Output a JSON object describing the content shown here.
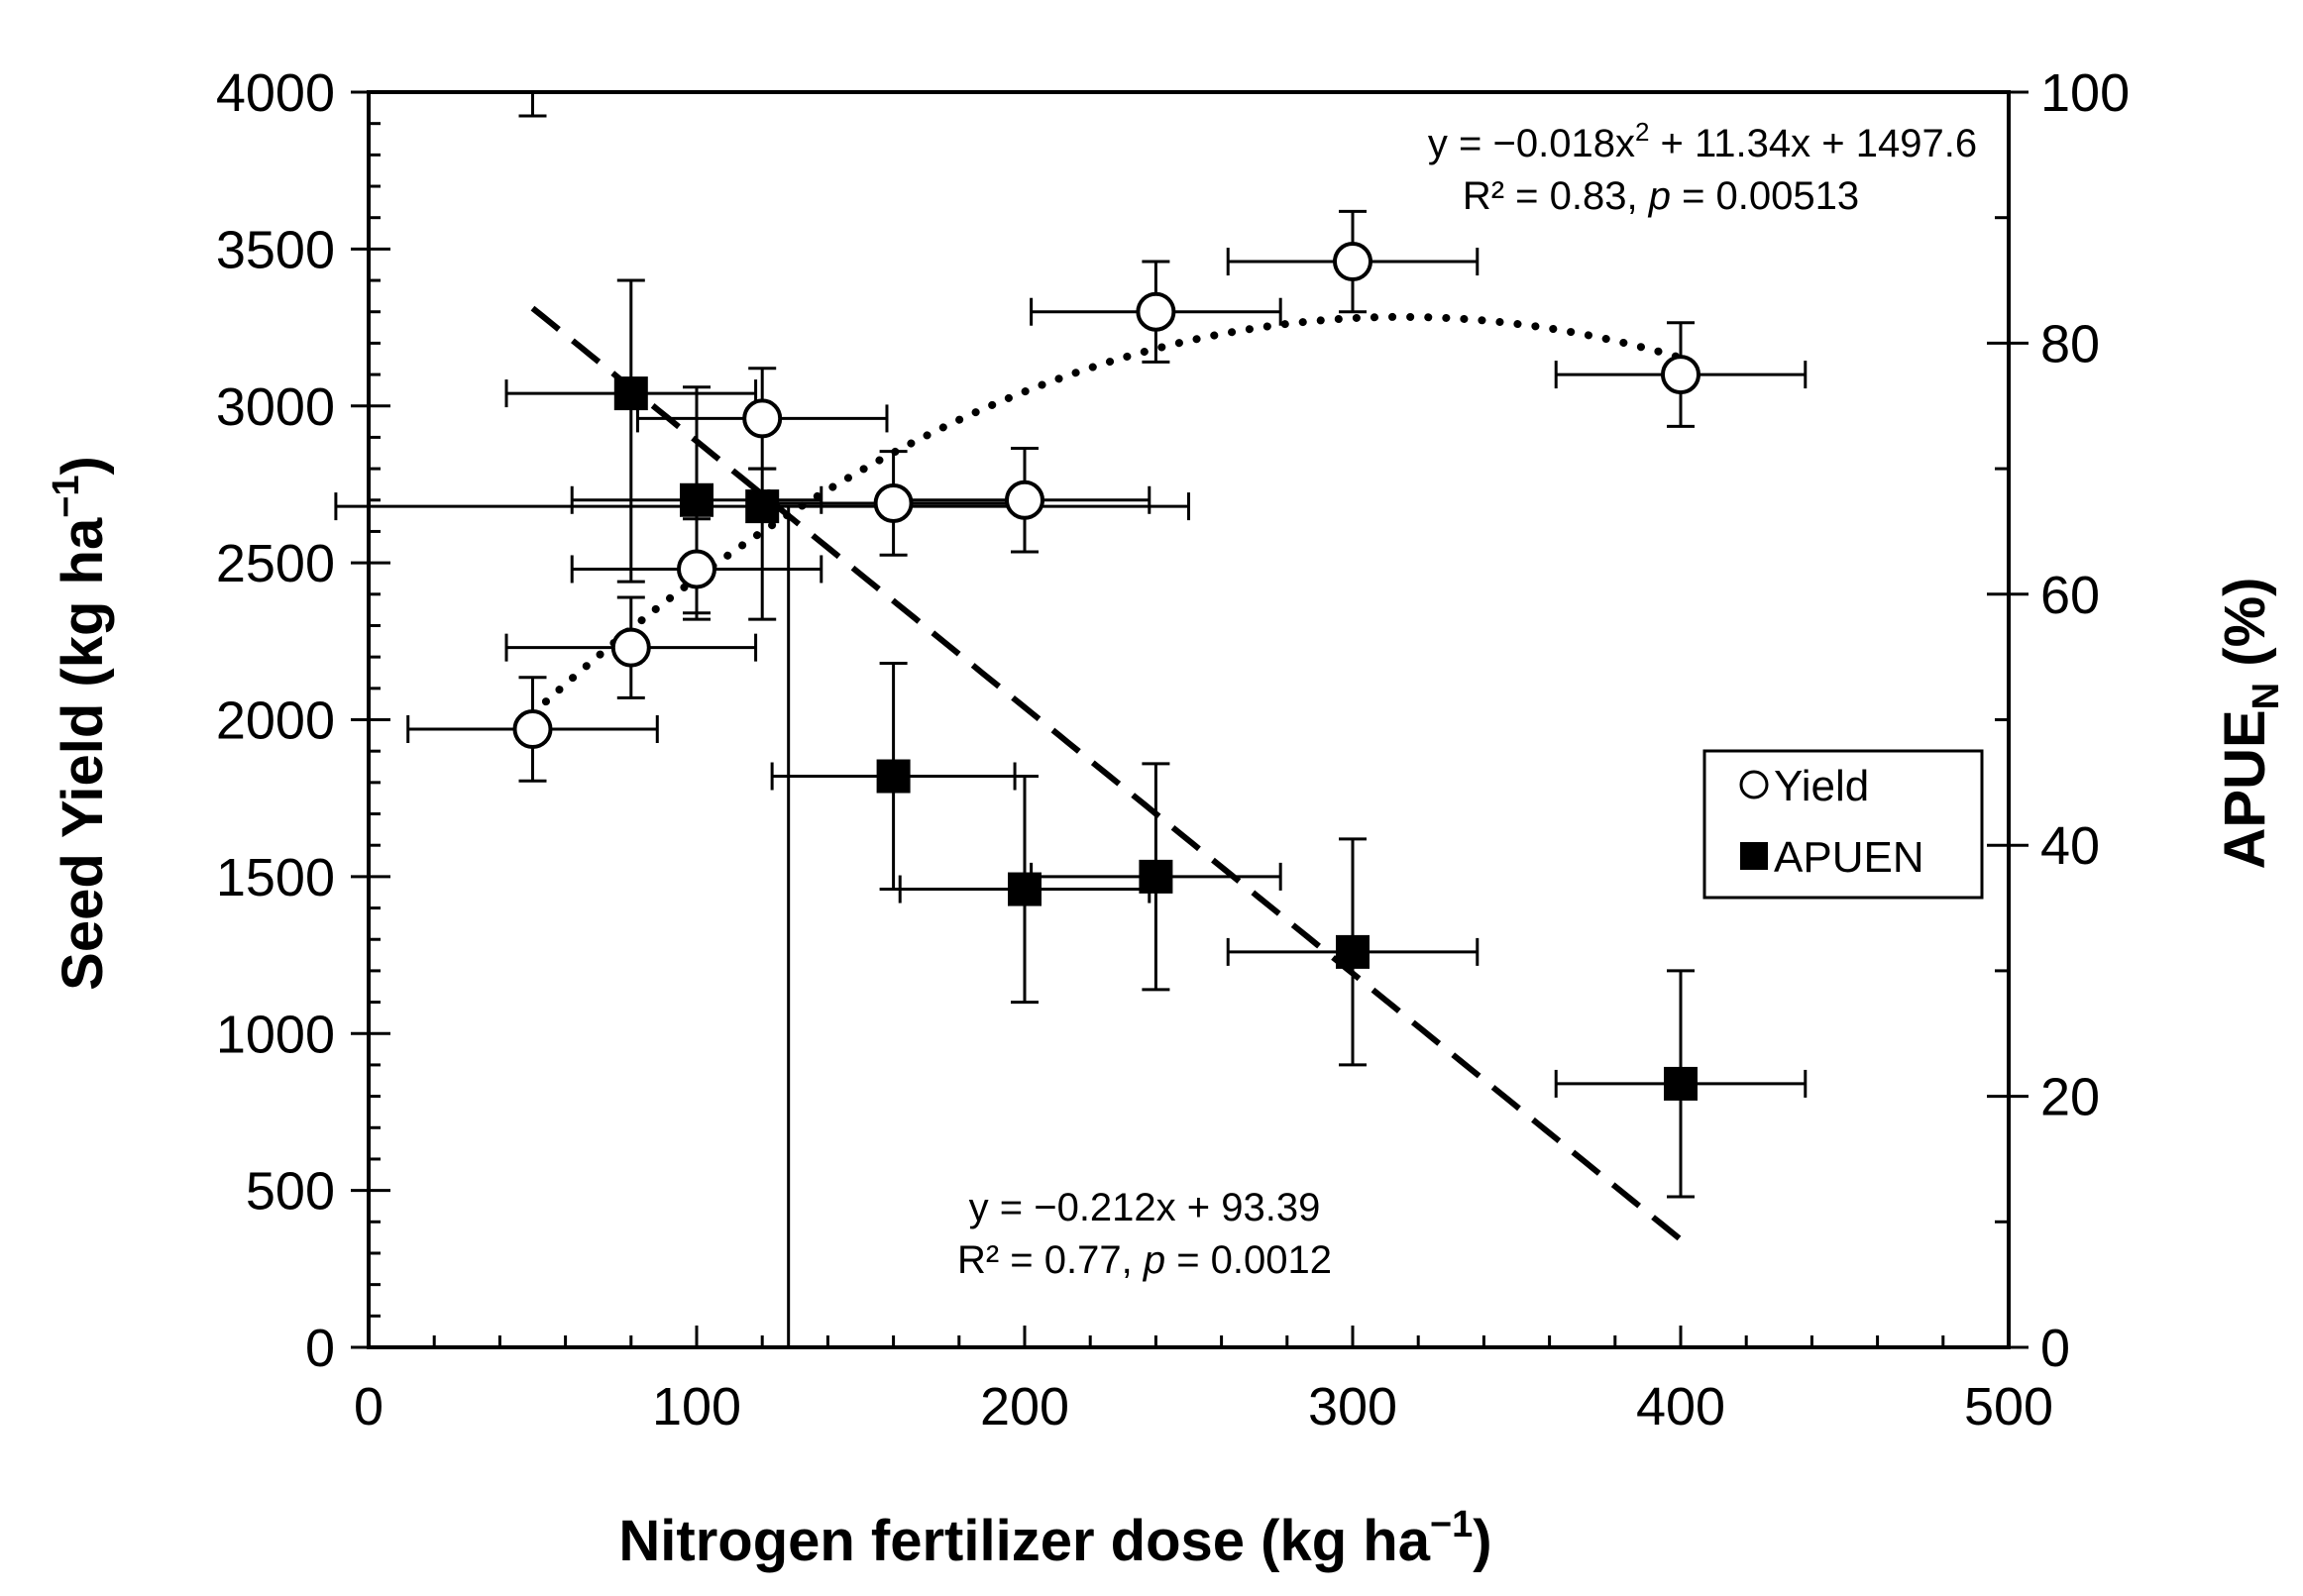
{
  "chart_data": {
    "type": "scatter",
    "x_axis": {
      "label_main": "Nitrogen fertilizer dose (kg ha",
      "label_sup": "−1",
      "label_end": ")",
      "range": [
        0,
        500
      ],
      "ticks": [
        0,
        100,
        200,
        300,
        400,
        500
      ],
      "minor_step": 20
    },
    "y_axis_left": {
      "label_main": "Seed Yield (kg ha",
      "label_sup": "−1",
      "label_end": ")",
      "range": [
        0,
        4000
      ],
      "ticks": [
        0,
        500,
        1000,
        1500,
        2000,
        2500,
        3000,
        3500,
        4000
      ],
      "minor_step": 100
    },
    "y_axis_right": {
      "label_main": "APUE",
      "label_sub": "N",
      "label_end": " (%)",
      "range": [
        0,
        100
      ],
      "ticks": [
        0,
        20,
        40,
        60,
        80,
        100
      ],
      "minor_step": 10
    },
    "series": [
      {
        "name": "Yield",
        "axis": "left",
        "marker": "open-circle",
        "points": [
          {
            "x": 50,
            "y": 1970,
            "xerr": 38,
            "yerr_lo": 165,
            "yerr_hi": 165
          },
          {
            "x": 80,
            "y": 2230,
            "xerr": 38,
            "yerr_lo": 160,
            "yerr_hi": 160
          },
          {
            "x": 100,
            "y": 2480,
            "xerr": 38,
            "yerr_lo": 160,
            "yerr_hi": 160
          },
          {
            "x": 120,
            "y": 2960,
            "xerr": 38,
            "yerr_lo": 160,
            "yerr_hi": 160
          },
          {
            "x": 160,
            "y": 2690,
            "xerr": 38,
            "yerr_lo": 165,
            "yerr_hi": 165
          },
          {
            "x": 200,
            "y": 2700,
            "xerr": 38,
            "yerr_lo": 165,
            "yerr_hi": 165
          },
          {
            "x": 240,
            "y": 3300,
            "xerr": 38,
            "yerr_lo": 160,
            "yerr_hi": 160
          },
          {
            "x": 300,
            "y": 3460,
            "xerr": 38,
            "yerr_lo": 160,
            "yerr_hi": 160
          },
          {
            "x": 400,
            "y": 3100,
            "xerr": 38,
            "yerr_lo": 165,
            "yerr_hi": 165
          }
        ],
        "fit": {
          "type": "quadratic",
          "a": -0.018,
          "b": 11.34,
          "c": 1497.6,
          "x_from": 50,
          "x_to": 400,
          "style": "dotted"
        }
      },
      {
        "name": "APUEN",
        "axis": "right",
        "marker": "filled-square",
        "points": [
          {
            "x": 80,
            "y": 76,
            "xerr": 38,
            "yerr_lo": 15,
            "yerr_hi": 9
          },
          {
            "x": 100,
            "y": 67.5,
            "xerr": 38,
            "yerr_lo": 9,
            "yerr_hi": 9
          },
          {
            "x": 120,
            "y": 67,
            "xerr": 130,
            "yerr_lo": 9,
            "yerr_hi": 3
          },
          {
            "x": 160,
            "y": 45.5,
            "xerr": 37,
            "yerr_lo": 9,
            "yerr_hi": 9
          },
          {
            "x": 200,
            "y": 36.5,
            "xerr": 38,
            "yerr_lo": 9,
            "yerr_hi": 9
          },
          {
            "x": 240,
            "y": 37.5,
            "xerr": 38,
            "yerr_lo": 9,
            "yerr_hi": 9
          },
          {
            "x": 300,
            "y": 31.5,
            "xerr": 38,
            "yerr_lo": 9,
            "yerr_hi": 9
          },
          {
            "x": 400,
            "y": 21,
            "xerr": 38,
            "yerr_lo": 9,
            "yerr_hi": 9
          }
        ],
        "fit": {
          "type": "linear",
          "m": -0.212,
          "b": 93.39,
          "x_from": 50,
          "x_to": 400,
          "style": "dashed"
        }
      }
    ],
    "annotations": {
      "yield_eq_line1_pre": "y = −0.018x",
      "yield_eq_line1_sup": "2",
      "yield_eq_line1_post": " + 11.34x + 1497.6",
      "yield_eq_line2_pre": "R² = 0.83,   ",
      "yield_eq_line2_p": "p",
      "yield_eq_line2_post": " = 0.00513",
      "apue_eq_line1": "y = −0.212x + 93.39",
      "apue_eq_line2_pre": "R² = 0.77,   ",
      "apue_eq_line2_p": "p",
      "apue_eq_line2_post": " = 0.0012"
    },
    "legend": {
      "position": "right-middle",
      "items": [
        "Yield",
        "APUEN"
      ]
    },
    "extra_marks": {
      "vertical_line_x": 128,
      "top_stub_x": 50
    }
  }
}
